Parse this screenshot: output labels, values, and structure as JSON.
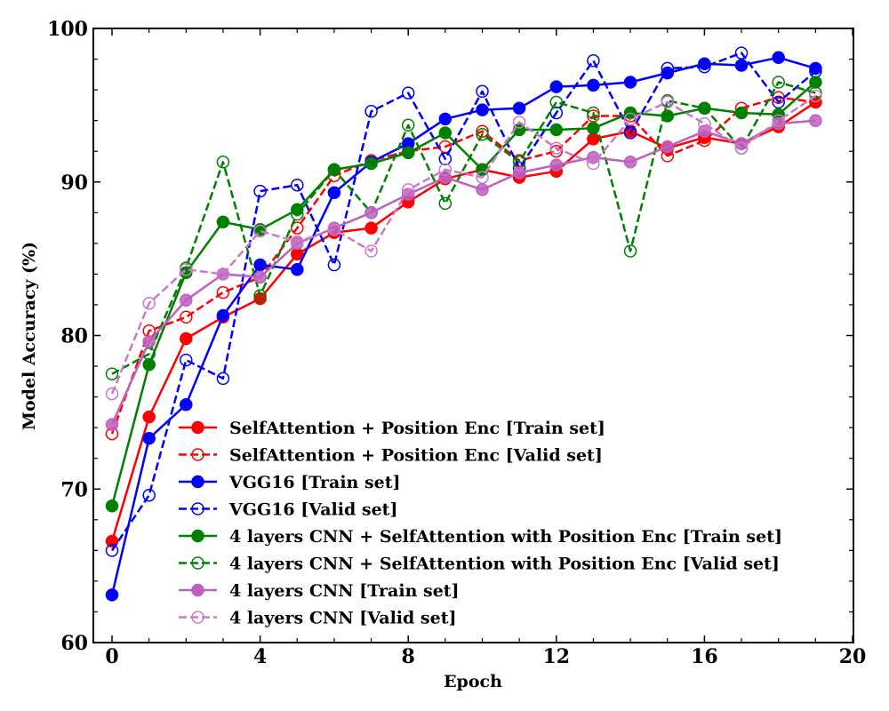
{
  "chart_data": {
    "type": "line",
    "title": "",
    "xlabel": "Epoch",
    "ylabel": "Model Accuracy (%)",
    "xlim": [
      -0.5,
      20
    ],
    "ylim": [
      60,
      100
    ],
    "xticks": [
      0,
      4,
      8,
      12,
      16,
      20
    ],
    "yticks": [
      60,
      70,
      80,
      90,
      100
    ],
    "grid": false,
    "legend_position": "lower-right",
    "x": [
      0,
      1,
      2,
      3,
      4,
      5,
      6,
      7,
      8,
      9,
      10,
      11,
      12,
      13,
      14,
      15,
      16,
      17,
      18,
      19
    ],
    "series": [
      {
        "name": "SelfAttention + Position Enc [Train set]",
        "color": "#ff0000",
        "style": "solid",
        "marker": "filled",
        "values": [
          66.6,
          74.7,
          79.8,
          81.2,
          82.4,
          85.3,
          86.7,
          87.0,
          88.7,
          90.2,
          90.8,
          90.3,
          90.7,
          92.8,
          93.3,
          92.2,
          92.9,
          92.5,
          93.6,
          95.2
        ]
      },
      {
        "name": "SelfAttention + Position Enc [Valid set]",
        "color": "#ff0000",
        "style": "dashed",
        "marker": "open",
        "values": [
          73.6,
          80.3,
          81.2,
          82.8,
          83.8,
          87.0,
          90.4,
          91.4,
          92.0,
          92.3,
          93.3,
          91.4,
          92.0,
          94.3,
          94.3,
          91.7,
          92.7,
          94.8,
          95.5,
          95.2
        ]
      },
      {
        "name": "VGG16 [Train set]",
        "color": "#0000ff",
        "style": "solid",
        "marker": "filled",
        "values": [
          63.1,
          73.3,
          75.5,
          81.3,
          84.6,
          84.3,
          89.3,
          91.3,
          92.5,
          94.1,
          94.7,
          94.8,
          96.2,
          96.3,
          96.5,
          97.1,
          97.7,
          97.6,
          98.1,
          97.4
        ]
      },
      {
        "name": "VGG16 [Valid set]",
        "color": "#0000ff",
        "style": "dashed",
        "marker": "open",
        "values": [
          66.0,
          69.6,
          78.4,
          77.2,
          89.4,
          89.8,
          84.6,
          94.6,
          95.8,
          91.5,
          95.9,
          90.9,
          94.5,
          97.9,
          93.2,
          97.4,
          97.5,
          98.4,
          95.2,
          97.2
        ]
      },
      {
        "name": "4 layers CNN + SelfAttention with Position Enc [Train set]",
        "color": "#008000",
        "style": "solid",
        "marker": "filled",
        "values": [
          68.9,
          78.1,
          84.1,
          87.4,
          86.9,
          88.2,
          90.8,
          91.2,
          91.9,
          93.2,
          90.8,
          93.4,
          93.4,
          93.5,
          94.5,
          94.3,
          94.8,
          94.5,
          94.4,
          96.5
        ]
      },
      {
        "name": "4 layers CNN + SelfAttention with Position Enc [Valid set]",
        "color": "#008000",
        "style": "dashed",
        "marker": "open",
        "values": [
          77.5,
          78.8,
          84.4,
          91.3,
          82.6,
          87.9,
          90.8,
          88.0,
          93.7,
          88.6,
          93.1,
          91.3,
          95.2,
          94.5,
          85.5,
          95.3,
          94.8,
          92.2,
          96.5,
          95.8
        ]
      },
      {
        "name": "4 layers CNN [Train set]",
        "color": "#bf5fbf",
        "style": "solid",
        "marker": "filled",
        "values": [
          74.2,
          79.6,
          82.3,
          84.0,
          83.8,
          86.0,
          87.0,
          88.0,
          89.2,
          90.3,
          89.5,
          90.6,
          91.1,
          91.6,
          91.3,
          92.3,
          93.3,
          92.5,
          93.8,
          94.0
        ]
      },
      {
        "name": "4 layers CNN [Valid set]",
        "color": "#c87ac8",
        "style": "dashed",
        "marker": "open",
        "values": [
          76.2,
          82.1,
          84.3,
          84.0,
          86.8,
          86.1,
          86.9,
          85.5,
          89.5,
          90.8,
          90.3,
          93.9,
          92.2,
          91.2,
          94.1,
          95.2,
          93.8,
          92.2,
          94.0,
          95.6
        ]
      }
    ]
  }
}
